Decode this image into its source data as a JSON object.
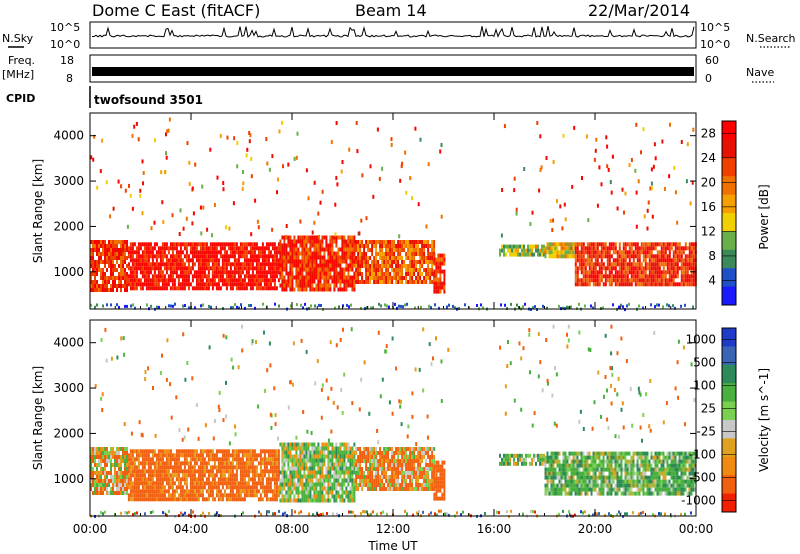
{
  "header": {
    "station": "Dome C East (fitACF)",
    "beam": "Beam 14",
    "date": "22/Mar/2014"
  },
  "status_panels": {
    "nsky": {
      "label": "N.Sky",
      "ticks": [
        "10^5",
        "10^0"
      ]
    },
    "nsearch": {
      "label": "N.Search",
      "ticks": [
        "10^5",
        "10^0"
      ]
    },
    "freq": {
      "label_line1": "Freq.",
      "label_line2": "[MHz]",
      "ticks": [
        "18",
        "8"
      ]
    },
    "nave": {
      "label": "Nave",
      "ticks": [
        "60",
        "0"
      ]
    },
    "cpid": {
      "label": "CPID",
      "program": "twofsound 3501"
    }
  },
  "colors": {
    "power_scale": [
      "#1a1aff",
      "#2050c8",
      "#3c8a5a",
      "#6ab04a",
      "#f0d000",
      "#f5a000",
      "#f07000",
      "#f04000",
      "#e81000",
      "#ff0000"
    ],
    "velocity_scale": [
      "#1e3cc8",
      "#3a64b4",
      "#2e8a5a",
      "#4ab040",
      "#7ad050",
      "#c8c8c8",
      "#e0a020",
      "#f08a10",
      "#f06010",
      "#f02000"
    ]
  },
  "chart_data": [
    {
      "type": "heatmap",
      "name": "power-panel",
      "ylabel": "Slant Range [km]",
      "xlabel": "",
      "x_ticks": [
        "00:00",
        "04:00",
        "08:00",
        "12:00",
        "16:00",
        "20:00",
        "00:00"
      ],
      "xlim_hours": [
        0,
        24
      ],
      "y_ticks": [
        1000,
        2000,
        3000,
        4000
      ],
      "ylim": [
        180,
        4500
      ],
      "colorbar": {
        "label": "Power [dB]",
        "ticks": [
          "28",
          "24",
          "20",
          "16",
          "12",
          "8",
          "4"
        ],
        "range": [
          0,
          30
        ]
      },
      "regions": [
        {
          "t_start": 0.0,
          "t_end": 1.5,
          "range_low": 600,
          "range_high": 1700,
          "level": 0.92
        },
        {
          "t_start": 1.5,
          "t_end": 7.5,
          "range_low": 650,
          "range_high": 1650,
          "level": 0.95
        },
        {
          "t_start": 7.5,
          "t_end": 10.5,
          "range_low": 600,
          "range_high": 1800,
          "level": 0.9
        },
        {
          "t_start": 10.5,
          "t_end": 13.6,
          "range_low": 800,
          "range_high": 1700,
          "level": 0.75
        },
        {
          "t_start": 13.6,
          "t_end": 14.0,
          "range_low": 600,
          "range_high": 1400,
          "level": 0.9
        },
        {
          "t_start": 16.2,
          "t_end": 18.0,
          "range_low": 1350,
          "range_high": 1600,
          "level": 0.45
        },
        {
          "t_start": 18.0,
          "t_end": 19.2,
          "range_low": 1300,
          "range_high": 1650,
          "level": 0.5
        },
        {
          "t_start": 19.2,
          "t_end": 24.0,
          "range_low": 750,
          "range_high": 1650,
          "level": 0.9
        }
      ]
    },
    {
      "type": "heatmap",
      "name": "velocity-panel",
      "ylabel": "Slant Range [km]",
      "xlabel": "Time UT",
      "x_ticks": [
        "00:00",
        "04:00",
        "08:00",
        "12:00",
        "16:00",
        "20:00",
        "00:00"
      ],
      "xlim_hours": [
        0,
        24
      ],
      "y_ticks": [
        1000,
        2000,
        3000,
        4000
      ],
      "ylim": [
        180,
        4500
      ],
      "colorbar": {
        "label": "Velocity [m s^-1]",
        "ticks": [
          "1000",
          "500",
          "100",
          "25",
          "-25",
          "-100",
          "-500",
          "-1000"
        ],
        "range": [
          -1000,
          1000
        ]
      },
      "regions": [
        {
          "t_start": 0.0,
          "t_end": 1.5,
          "range_low": 650,
          "range_high": 1700,
          "value": -25
        },
        {
          "t_start": 1.5,
          "t_end": 7.5,
          "range_low": 550,
          "range_high": 1650,
          "value": -200
        },
        {
          "t_start": 7.5,
          "t_end": 10.5,
          "range_low": 550,
          "range_high": 1800,
          "value": 100
        },
        {
          "t_start": 10.5,
          "t_end": 13.6,
          "range_low": 800,
          "range_high": 1700,
          "value": -80
        },
        {
          "t_start": 13.6,
          "t_end": 14.0,
          "range_low": 600,
          "range_high": 1400,
          "value": -300
        },
        {
          "t_start": 16.2,
          "t_end": 18.0,
          "range_low": 1350,
          "range_high": 1550,
          "value": 120
        },
        {
          "t_start": 18.0,
          "t_end": 24.0,
          "range_low": 700,
          "range_high": 1600,
          "value": 150
        }
      ]
    }
  ]
}
